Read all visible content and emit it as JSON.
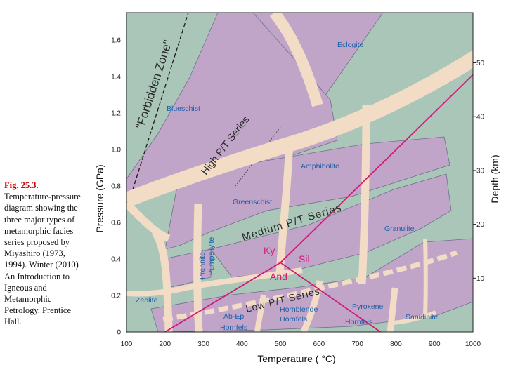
{
  "caption": {
    "figure": "Fig. 25.3.",
    "text": "Temperature-pressure diagram showing the three major types of metamorphic facies series proposed by Miyashiro (1973, 1994). Winter (2010) An Introduction to Igneous and Metamorphic Petrology. Prentice Hall."
  },
  "axes": {
    "x_title": "Temperature ( °C)",
    "y_title": "Pressure (GPa)",
    "y2_title": "Depth (km)",
    "x_ticks": [
      "100",
      "200",
      "300",
      "400",
      "500",
      "600",
      "700",
      "800",
      "900",
      "1000"
    ],
    "y_ticks": [
      "0",
      "0.2",
      "0.4",
      "0.6",
      "0.8",
      "1.0",
      "1.2",
      "1.4",
      "1.6"
    ],
    "y2_ticks": [
      "10",
      "20",
      "30",
      "40",
      "50"
    ]
  },
  "labels": {
    "forbidden_zone": "\"Forbidden Zone\"",
    "high_series": "High P/T Series",
    "medium_series": "Medium P/T Series",
    "low_series": "Low P/T Series"
  },
  "facies": {
    "eclogite": "Eclogite",
    "blueschist": "Blueschist",
    "amphibolite": "Amphibolite",
    "greenschist": "Greenschist",
    "granulite": "Granulite",
    "prehnite": "Prehnite-",
    "pumpellyite": "Pumpellyite",
    "zeolite": "Zeolite",
    "hornblende": "Hornblende",
    "hornblende_hornfels": "Hornfels",
    "pyroxene": "Pyroxene",
    "pyroxene_hornfels": "Hornfels",
    "sanidinite": "Sanidinite",
    "abep": "Ab-Ep",
    "abep_hornfels": "Hornfels"
  },
  "minerals": {
    "ky": "Ky",
    "sil": "Sil",
    "and": "And"
  },
  "colors": {
    "background": "#a9c6b9",
    "facies_fill": "#c1a5c9",
    "facies_stroke": "#6e6e8a",
    "series_band": "#f2dcc6",
    "polymorph_lines": "#d4197a",
    "facies_text": "#1a5fa8"
  },
  "chart_data": {
    "type": "diagram",
    "x_range": [
      100,
      1000
    ],
    "y_range": [
      0,
      1.75
    ],
    "depth_ticks_km": [
      10,
      20,
      30,
      40,
      50
    ],
    "triple_point": {
      "T": 500,
      "P": 0.38
    },
    "polymorph_boundaries": [
      {
        "name": "Ky-And",
        "from": {
          "T": 200,
          "P": 0
        },
        "to": {
          "T": 500,
          "P": 0.38
        }
      },
      {
        "name": "Ky-Sil",
        "from": {
          "T": 500,
          "P": 0.38
        },
        "to": {
          "T": 1000,
          "P": 1.41
        }
      },
      {
        "name": "And-Sil",
        "from": {
          "T": 500,
          "P": 0.38
        },
        "to": {
          "T": 760,
          "P": 0
        }
      }
    ]
  }
}
